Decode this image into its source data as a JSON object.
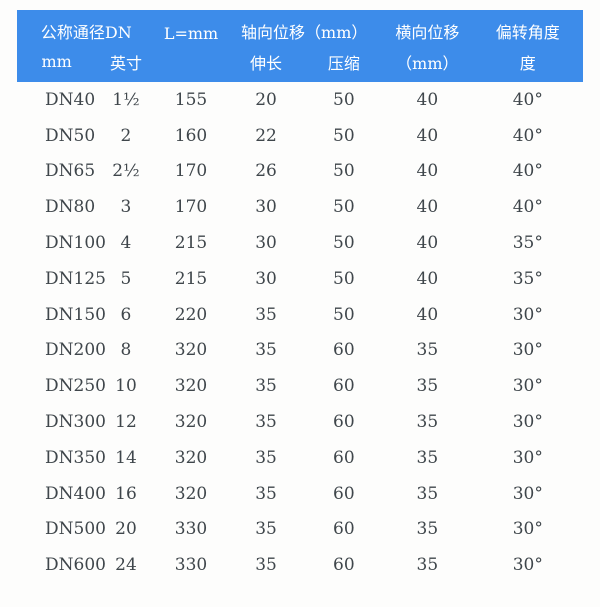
{
  "colors": {
    "header_bg": "#3d8cea",
    "header_text": "#ffffff",
    "body_text": "#3f464b",
    "page_bg": "#fdfdfc"
  },
  "chart_data": {
    "type": "table",
    "header": {
      "group_dn": "公称通径DN",
      "col_l": "L=mm",
      "group_axial": "轴向位移（mm）",
      "col_lateral_line1": "横向位移",
      "col_angle_line1": "偏转角度",
      "sub_mm": "mm",
      "sub_inch": "英寸",
      "sub_l_blank": "",
      "sub_extend": "伸长",
      "sub_compress": "压缩",
      "col_lateral_line2": "（mm）",
      "col_angle_line2": "度"
    },
    "columns": [
      "公称通径DN mm",
      "公称通径DN 英寸",
      "L=mm",
      "轴向位移 伸长 (mm)",
      "轴向位移 压缩 (mm)",
      "横向位移 (mm)",
      "偏转角度 度"
    ],
    "rows": [
      [
        "DN40",
        "1½",
        "155",
        "20",
        "50",
        "40",
        "40°"
      ],
      [
        "DN50",
        "2",
        "160",
        "22",
        "50",
        "40",
        "40°"
      ],
      [
        "DN65",
        "2½",
        "170",
        "26",
        "50",
        "40",
        "40°"
      ],
      [
        "DN80",
        "3",
        "170",
        "30",
        "50",
        "40",
        "40°"
      ],
      [
        "DN100",
        "4",
        "215",
        "30",
        "50",
        "40",
        "35°"
      ],
      [
        "DN125",
        "5",
        "215",
        "30",
        "50",
        "40",
        "35°"
      ],
      [
        "DN150",
        "6",
        "220",
        "35",
        "50",
        "40",
        "30°"
      ],
      [
        "DN200",
        "8",
        "320",
        "35",
        "60",
        "35",
        "30°"
      ],
      [
        "DN250",
        "10",
        "320",
        "35",
        "60",
        "35",
        "30°"
      ],
      [
        "DN300",
        "12",
        "320",
        "35",
        "60",
        "35",
        "30°"
      ],
      [
        "DN350",
        "14",
        "320",
        "35",
        "60",
        "35",
        "30°"
      ],
      [
        "DN400",
        "16",
        "320",
        "35",
        "60",
        "35",
        "30°"
      ],
      [
        "DN500",
        "20",
        "330",
        "35",
        "60",
        "35",
        "30°"
      ],
      [
        "DN600",
        "24",
        "330",
        "35",
        "60",
        "35",
        "30°"
      ]
    ]
  }
}
